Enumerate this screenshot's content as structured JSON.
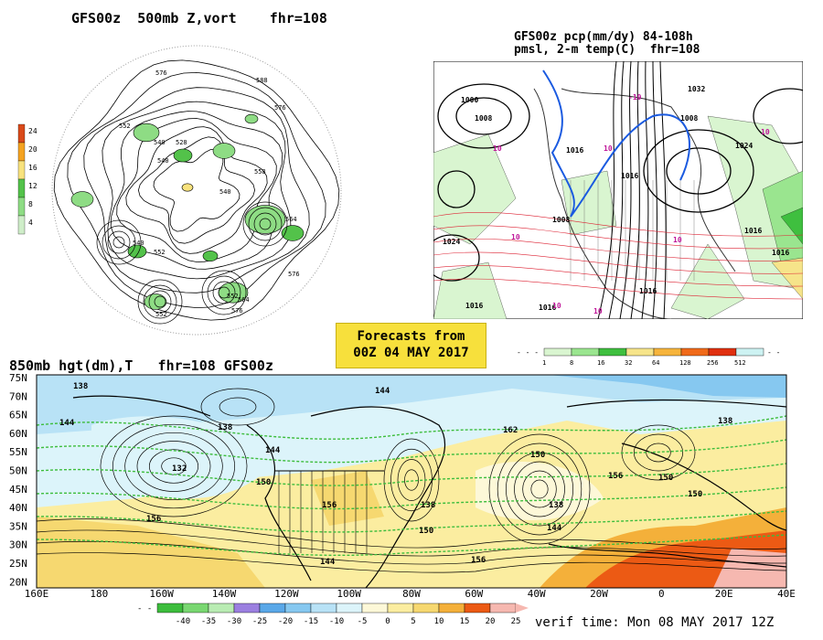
{
  "polar": {
    "title": "GFS00z  500mb Z,vort    fhr=108",
    "contour_labels": [
      "576",
      "588",
      "576",
      "552",
      "540",
      "528",
      "540",
      "558",
      "540",
      "540",
      "564",
      "552",
      "576",
      "564",
      "552",
      "576",
      "552"
    ],
    "colorbar": {
      "values": [
        "24",
        "20",
        "16",
        "12",
        "8",
        "4"
      ],
      "colors": [
        "#d94a1a",
        "#f4a321",
        "#f8e27d",
        "#53c24a",
        "#8edc84",
        "#cfeec9"
      ]
    }
  },
  "precip": {
    "title_line1": "GFS00z pcp(mm/dy) 84-108h",
    "title_line2": "pmsl, 2-m temp(C)  fhr=108",
    "isobar_labels": [
      "1000",
      "1008",
      "1016",
      "1032",
      "1008",
      "1024",
      "1016",
      "1008",
      "1024",
      "1016",
      "1016",
      "1016",
      "1016",
      "1016"
    ],
    "temp_labels": [
      "10",
      "10",
      "-10",
      "10",
      "10",
      "10",
      "10",
      "10"
    ],
    "colorbar": {
      "values": [
        "1",
        "8",
        "16",
        "32",
        "64",
        "128",
        "256",
        "512"
      ],
      "colors": [
        "#d9f5d0",
        "#9ae58f",
        "#3fbf3f",
        "#f6e48a",
        "#f6b43c",
        "#f06a1a",
        "#e03010",
        "#cdf2f2"
      ]
    }
  },
  "banner": {
    "line1": "Forecasts from",
    "line2": "00Z 04 MAY 2017"
  },
  "map850": {
    "title": "850mb hgt(dm),T   fhr=108 GFS00z",
    "lat_labels": [
      "75N",
      "70N",
      "65N",
      "60N",
      "55N",
      "50N",
      "45N",
      "40N",
      "35N",
      "30N",
      "25N",
      "20N"
    ],
    "lon_labels": [
      "160E",
      "180",
      "160W",
      "140W",
      "120W",
      "100W",
      "80W",
      "60W",
      "40W",
      "20W",
      "0",
      "20E",
      "40E"
    ],
    "height_labels": [
      "138",
      "144",
      "138",
      "132",
      "144",
      "150",
      "156",
      "144",
      "138",
      "150",
      "156",
      "162",
      "150",
      "138",
      "144",
      "156",
      "150",
      "138",
      "150",
      "144",
      "156"
    ],
    "colorbar": {
      "values": [
        "-40",
        "-35",
        "-30",
        "-25",
        "-20",
        "-15",
        "-10",
        "-5",
        "0",
        "5",
        "10",
        "15",
        "20",
        "25"
      ],
      "colors": [
        "#3dbd3d",
        "#79d771",
        "#b9ecb3",
        "#9b7fe0",
        "#5aa8e8",
        "#86c8f0",
        "#b8e2f6",
        "#dcf4fa",
        "#fdf8d8",
        "#fbeda0",
        "#f6d870",
        "#f4b03a",
        "#ec5a14",
        "#f6b8b0"
      ]
    },
    "verif_time": "verif time: Mon 08 MAY 2017 12Z"
  }
}
